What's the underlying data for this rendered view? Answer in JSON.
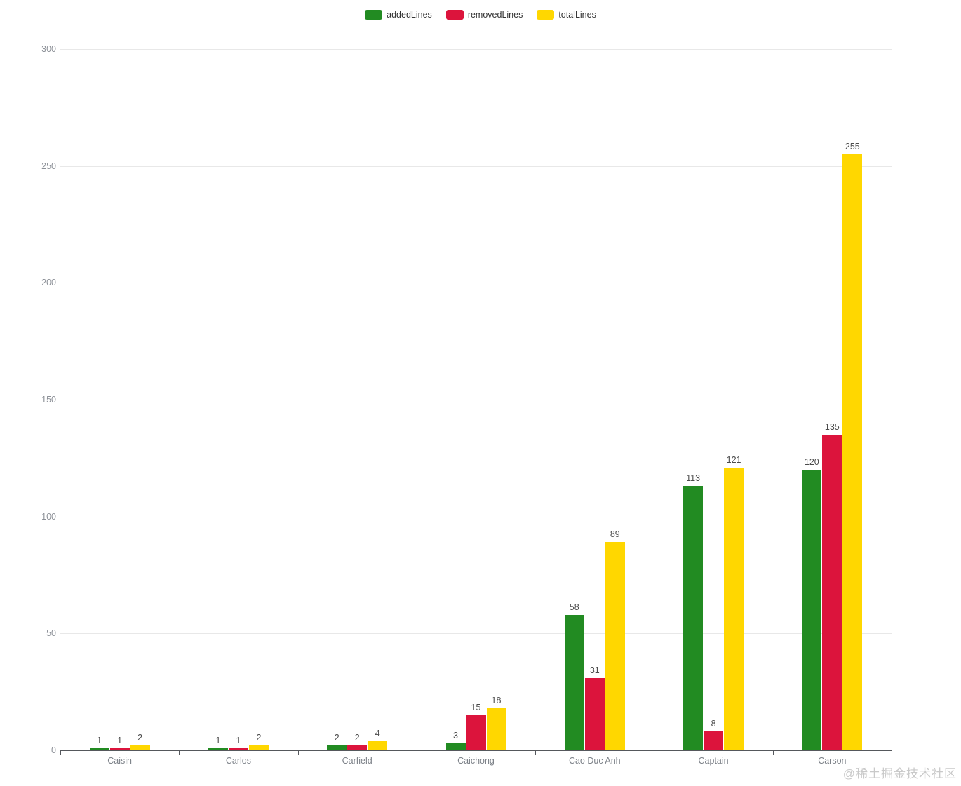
{
  "watermark": "@稀土掘金技术社区",
  "legend": {
    "items": [
      "addedLines",
      "removedLines",
      "totalLines"
    ]
  },
  "chart_data": {
    "type": "bar",
    "title": "",
    "xlabel": "",
    "ylabel": "",
    "categories": [
      "Caisin",
      "Carlos",
      "Carfield",
      "Caichong",
      "Cao Duc Anh",
      "Captain",
      "Carson"
    ],
    "series": [
      {
        "name": "addedLines",
        "color": "#228B22",
        "values": [
          1,
          1,
          2,
          3,
          58,
          113,
          120
        ]
      },
      {
        "name": "removedLines",
        "color": "#DC143C",
        "values": [
          1,
          1,
          2,
          15,
          31,
          8,
          135
        ]
      },
      {
        "name": "totalLines",
        "color": "#FFD700",
        "values": [
          2,
          2,
          4,
          18,
          89,
          121,
          255
        ]
      }
    ],
    "ylim": [
      0,
      300
    ],
    "yticks": [
      0,
      50,
      100,
      150,
      200,
      250,
      300
    ],
    "grid": true,
    "legend_position": "top",
    "value_labels": true
  }
}
